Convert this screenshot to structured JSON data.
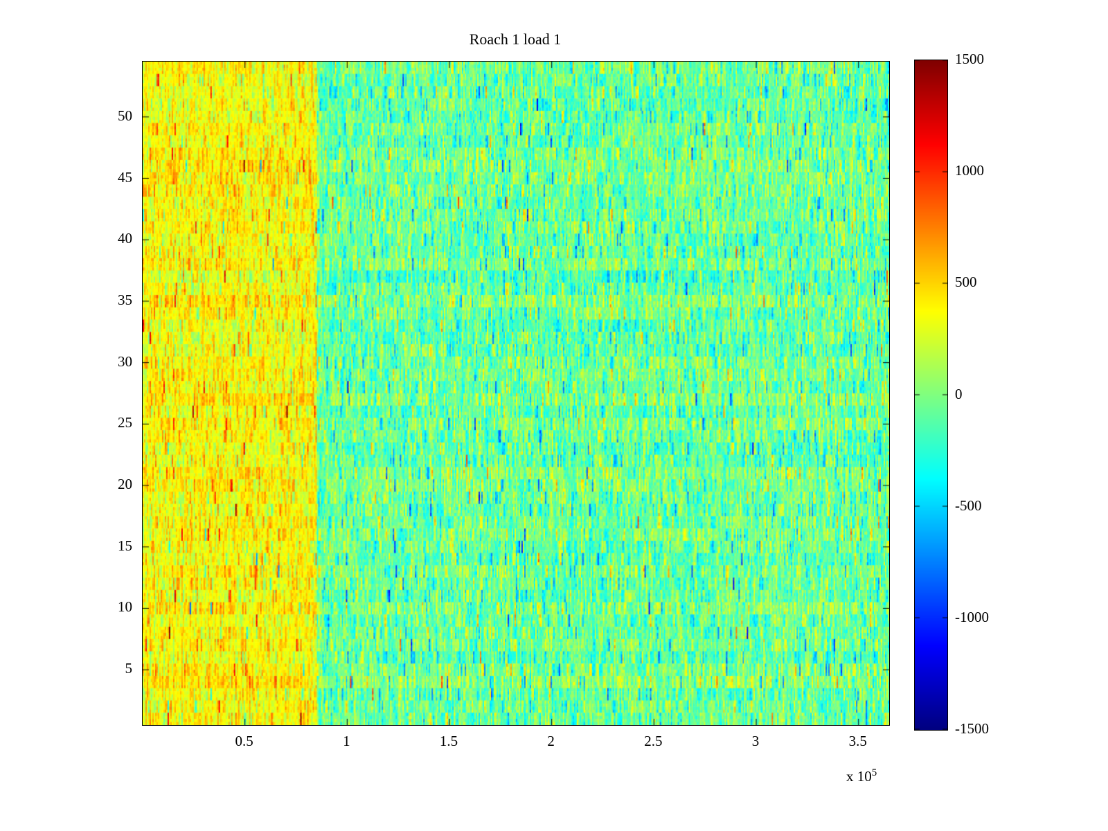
{
  "figure": {
    "background_color": "#ffffff",
    "frame_color": "#000000"
  },
  "chart_data": {
    "type": "heatmap",
    "title": "Roach 1 load 1",
    "xlabel": "",
    "ylabel": "",
    "x_range": [
      0,
      365000
    ],
    "y_range": [
      0.5,
      54.5
    ],
    "x_ticks": [
      50000,
      100000,
      150000,
      200000,
      250000,
      300000,
      350000
    ],
    "x_tick_labels": [
      "0.5",
      "1",
      "1.5",
      "2",
      "2.5",
      "3",
      "3.5"
    ],
    "x_multiplier_base": "x 10",
    "x_multiplier_exp": "5",
    "y_ticks": [
      5,
      10,
      15,
      20,
      25,
      30,
      35,
      40,
      45,
      50
    ],
    "y_tick_labels": [
      "5",
      "10",
      "15",
      "20",
      "25",
      "30",
      "35",
      "40",
      "45",
      "50"
    ],
    "rows": 54,
    "cols": 540,
    "colormap": "jet",
    "clim": [
      -1500,
      1500
    ],
    "colorbar_ticks": [
      1500,
      1000,
      500,
      0,
      -500,
      -1000,
      -1500
    ],
    "grid": false,
    "legend": "none",
    "seed": 1337,
    "regions": [
      {
        "label": "high-amplitude-left-segment",
        "x_start": 0,
        "x_end": 85000,
        "mean": 380,
        "std": 150,
        "spikes": [
          {
            "prob": 0.02,
            "mean": 850,
            "std": 250
          },
          {
            "prob": 0.004,
            "mean": -350,
            "std": 250
          }
        ]
      },
      {
        "label": "baseline-right-segment",
        "x_start": 85000,
        "x_end": 365000,
        "mean": -60,
        "std": 190,
        "spikes": [
          {
            "prob": 0.012,
            "mean": -650,
            "std": 200
          },
          {
            "prob": 0.004,
            "mean": 550,
            "std": 200
          }
        ]
      }
    ]
  }
}
